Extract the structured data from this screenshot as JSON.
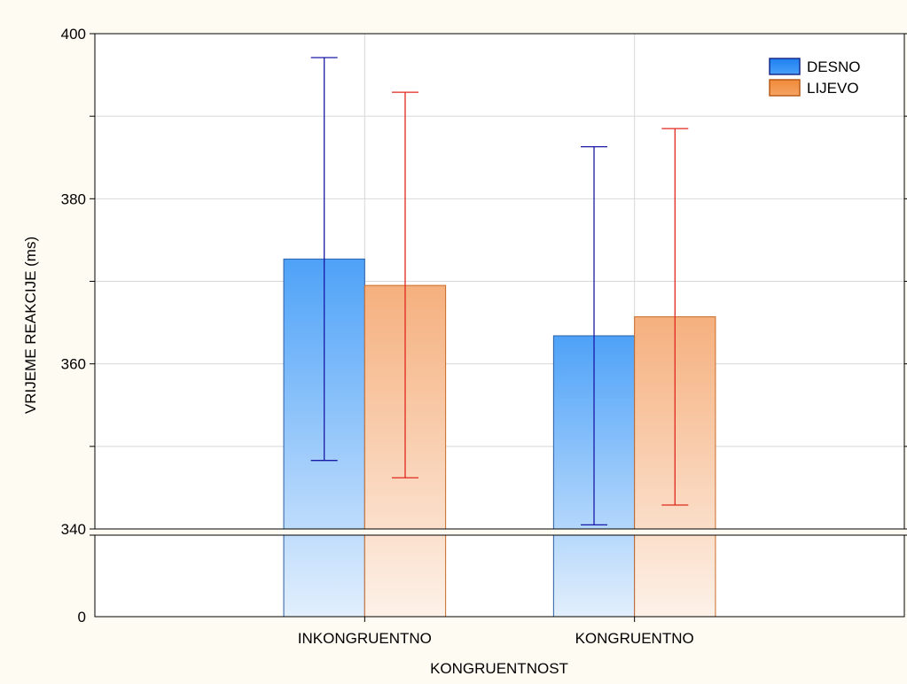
{
  "chart_data": {
    "type": "bar",
    "title": "",
    "xlabel": "KONGRUENTNOST",
    "ylabel": "VRIJEME REAKCIJE (ms)",
    "categories": [
      "INKONGRUENTNO",
      "KONGRUENTNO"
    ],
    "series": [
      {
        "name": "DESNO",
        "values": [
          372.7,
          363.4
        ],
        "error_low": [
          348.3,
          340.5
        ],
        "error_high": [
          397.1,
          386.3
        ],
        "color": "#3a8ff0",
        "error_color": "#1a1aa8"
      },
      {
        "name": "LIJEVO",
        "values": [
          369.5,
          365.7
        ],
        "error_low": [
          346.2,
          342.9
        ],
        "error_high": [
          392.9,
          388.5
        ],
        "color": "#f4a46a",
        "error_color": "#e0281e"
      }
    ],
    "y_axis": {
      "broken": true,
      "lower_ticks": [
        0
      ],
      "upper_ticks": [
        340,
        360,
        380,
        400
      ],
      "upper_range": [
        340,
        400
      ],
      "minor_gridlines": [
        350,
        370,
        390
      ]
    },
    "grid": true,
    "legend_position": "top-right"
  }
}
